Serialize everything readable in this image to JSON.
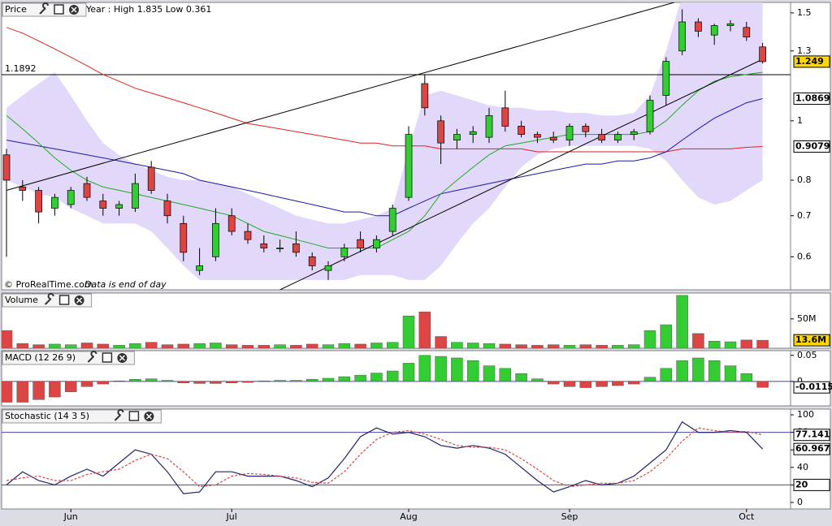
{
  "chart_data": [
    {
      "type": "candlestick",
      "title": "Price",
      "subtitle": "Year : High 1.835 Low 0.361",
      "source": "© ProRealTime.com",
      "note": "Data is end of day",
      "categories": [
        null,
        null,
        null,
        null,
        "Jun",
        null,
        null,
        null,
        null,
        null,
        null,
        null,
        null,
        null,
        "Jul",
        null,
        null,
        null,
        null,
        null,
        null,
        null,
        null,
        null,
        null,
        "Aug",
        null,
        null,
        null,
        null,
        null,
        null,
        null,
        null,
        null,
        "Sep",
        null,
        null,
        null,
        null,
        null,
        null,
        null,
        null,
        null,
        null,
        "Oct",
        null
      ],
      "open": [
        0.88,
        0.78,
        0.77,
        0.72,
        0.73,
        0.79,
        0.74,
        0.72,
        0.72,
        0.84,
        0.74,
        0.68,
        0.57,
        0.6,
        0.7,
        0.66,
        0.63,
        0.62,
        0.63,
        0.6,
        0.57,
        0.6,
        0.64,
        0.62,
        0.66,
        0.75,
        1.15,
        1.0,
        0.93,
        0.95,
        0.94,
        1.05,
        0.98,
        0.95,
        0.94,
        0.93,
        0.98,
        0.95,
        0.93,
        0.95,
        0.96,
        1.1,
        1.3,
        1.45,
        1.38,
        1.43,
        1.42,
        1.32
      ],
      "high": [
        0.9,
        0.8,
        0.78,
        0.76,
        0.78,
        0.81,
        0.76,
        0.74,
        0.82,
        0.86,
        0.76,
        0.7,
        0.62,
        0.72,
        0.72,
        0.68,
        0.65,
        0.64,
        0.66,
        0.61,
        0.59,
        0.63,
        0.66,
        0.65,
        0.73,
        0.98,
        1.19,
        1.02,
        0.97,
        0.98,
        1.05,
        1.12,
        1.0,
        0.96,
        0.96,
        0.99,
        0.99,
        0.97,
        0.96,
        0.97,
        1.1,
        1.27,
        1.52,
        1.47,
        1.44,
        1.46,
        1.45,
        1.34
      ],
      "low": [
        0.6,
        0.74,
        0.68,
        0.7,
        0.72,
        0.74,
        0.7,
        0.7,
        0.71,
        0.76,
        0.68,
        0.59,
        0.56,
        0.59,
        0.65,
        0.63,
        0.61,
        0.61,
        0.6,
        0.57,
        0.55,
        0.59,
        0.61,
        0.61,
        0.65,
        0.74,
        1.02,
        0.85,
        0.9,
        0.92,
        0.92,
        0.96,
        0.94,
        0.92,
        0.92,
        0.91,
        0.94,
        0.92,
        0.92,
        0.93,
        0.95,
        1.06,
        1.28,
        1.37,
        1.33,
        1.4,
        1.35,
        1.24
      ],
      "close": [
        0.8,
        0.77,
        0.71,
        0.75,
        0.77,
        0.75,
        0.72,
        0.73,
        0.79,
        0.77,
        0.7,
        0.61,
        0.58,
        0.68,
        0.66,
        0.64,
        0.62,
        0.62,
        0.61,
        0.58,
        0.58,
        0.62,
        0.62,
        0.64,
        0.72,
        0.95,
        1.05,
        0.92,
        0.95,
        0.96,
        1.02,
        0.98,
        0.95,
        0.94,
        0.93,
        0.98,
        0.96,
        0.93,
        0.95,
        0.96,
        1.08,
        1.25,
        1.45,
        1.4,
        1.43,
        1.44,
        1.37,
        1.249
      ],
      "up_color": "#33cc33",
      "down_color": "#dd4444",
      "log_scale": true,
      "ylim": [
        0.53,
        1.56
      ],
      "yticks": [
        0.6,
        0.7,
        0.8,
        1,
        1.3,
        1.5
      ],
      "hline": 1.1892,
      "band": {
        "color": "#e2d8fa",
        "upper": [
          1.05,
          1.1,
          1.15,
          1.2,
          1.1,
          1.0,
          0.92,
          0.88,
          0.85,
          0.83,
          0.81,
          0.8,
          0.8,
          0.79,
          0.78,
          0.76,
          0.74,
          0.72,
          0.7,
          0.69,
          0.68,
          0.68,
          0.69,
          0.7,
          0.72,
          0.9,
          1.1,
          1.12,
          1.1,
          1.08,
          1.06,
          1.05,
          1.05,
          1.04,
          1.04,
          1.03,
          1.03,
          1.02,
          1.02,
          1.03,
          1.1,
          1.3,
          1.6,
          1.6,
          1.6,
          1.6,
          1.6,
          1.6
        ],
        "lower": [
          0.8,
          0.78,
          0.76,
          0.75,
          0.72,
          0.7,
          0.68,
          0.68,
          0.68,
          0.66,
          0.62,
          0.58,
          0.55,
          0.55,
          0.55,
          0.55,
          0.55,
          0.55,
          0.55,
          0.55,
          0.55,
          0.55,
          0.56,
          0.56,
          0.56,
          0.55,
          0.55,
          0.58,
          0.63,
          0.68,
          0.72,
          0.78,
          0.84,
          0.88,
          0.9,
          0.91,
          0.91,
          0.91,
          0.91,
          0.91,
          0.9,
          0.86,
          0.8,
          0.75,
          0.73,
          0.74,
          0.77,
          0.8
        ]
      },
      "overlays": [
        {
          "color": "#dd2222",
          "values": [
            1.42,
            1.39,
            1.35,
            1.31,
            1.27,
            1.23,
            1.19,
            1.16,
            1.13,
            1.11,
            1.09,
            1.07,
            1.05,
            1.03,
            1.01,
            0.99,
            0.98,
            0.97,
            0.96,
            0.95,
            0.94,
            0.93,
            0.92,
            0.92,
            0.91,
            0.91,
            0.91,
            0.9,
            0.9,
            0.9,
            0.9,
            0.9,
            0.9,
            0.89,
            0.89,
            0.89,
            0.89,
            0.89,
            0.89,
            0.89,
            0.89,
            0.89,
            0.9,
            0.9,
            0.9,
            0.9,
            0.905,
            0.9079
          ]
        },
        {
          "color": "#1a1aa8",
          "values": [
            0.93,
            0.92,
            0.91,
            0.9,
            0.89,
            0.88,
            0.87,
            0.86,
            0.85,
            0.84,
            0.83,
            0.82,
            0.8,
            0.79,
            0.78,
            0.77,
            0.76,
            0.75,
            0.74,
            0.73,
            0.72,
            0.71,
            0.71,
            0.7,
            0.7,
            0.72,
            0.74,
            0.76,
            0.77,
            0.78,
            0.79,
            0.8,
            0.81,
            0.82,
            0.83,
            0.84,
            0.85,
            0.85,
            0.86,
            0.86,
            0.87,
            0.89,
            0.93,
            0.97,
            1.01,
            1.04,
            1.07,
            1.0869
          ]
        },
        {
          "color": "#22aa22",
          "values": [
            1.02,
            0.97,
            0.92,
            0.87,
            0.83,
            0.8,
            0.78,
            0.77,
            0.76,
            0.75,
            0.74,
            0.73,
            0.72,
            0.71,
            0.7,
            0.68,
            0.66,
            0.65,
            0.64,
            0.63,
            0.62,
            0.62,
            0.62,
            0.62,
            0.64,
            0.66,
            0.7,
            0.76,
            0.8,
            0.84,
            0.88,
            0.91,
            0.92,
            0.93,
            0.94,
            0.95,
            0.95,
            0.95,
            0.95,
            0.95,
            0.96,
            1.0,
            1.06,
            1.12,
            1.16,
            1.18,
            1.19,
            1.2
          ]
        }
      ],
      "trendlines": [
        {
          "x": [
            0,
            41.5
          ],
          "values": [
            0.77,
            1.56
          ]
        },
        {
          "x": [
            17,
            47
          ],
          "values": [
            0.53,
            1.26
          ]
        }
      ],
      "markers": [
        {
          "value": 1.249,
          "color": "#ffd700",
          "text_color": "#000000"
        },
        {
          "value": 1.0869,
          "color": "#ffffff",
          "text_color": "#0000aa"
        },
        {
          "value": 0.9079,
          "color": "#ffffff",
          "text_color": "#cc0000"
        }
      ]
    },
    {
      "type": "bar",
      "title": "Volume",
      "values": [
        30,
        8,
        6,
        7,
        6,
        9,
        7,
        5,
        8,
        10,
        6,
        7,
        8,
        9,
        6,
        5,
        5,
        6,
        5,
        7,
        6,
        8,
        7,
        9,
        10,
        55,
        62,
        20,
        10,
        9,
        8,
        7,
        6,
        5,
        6,
        5,
        6,
        5,
        5,
        6,
        30,
        40,
        90,
        25,
        12,
        11,
        14,
        13.6
      ],
      "ylim": [
        0,
        94
      ],
      "yticks": [
        {
          "value": 50,
          "label": "50M"
        }
      ],
      "markers": [
        {
          "value": 13.6,
          "label": "13.6M",
          "color": "#ffd700",
          "text_color": "#000000"
        }
      ]
    },
    {
      "type": "bar",
      "title": "MACD (12 26 9)",
      "up_color": "#33cc33",
      "down_color": "#dd4444",
      "values": [
        -0.04,
        -0.04,
        -0.035,
        -0.03,
        -0.02,
        -0.01,
        -0.005,
        0.001,
        0.004,
        0.005,
        0.002,
        -0.003,
        -0.004,
        -0.004,
        -0.003,
        -0.002,
        0.001,
        0.002,
        0.002,
        0.004,
        0.006,
        0.009,
        0.012,
        0.016,
        0.02,
        0.035,
        0.05,
        0.048,
        0.045,
        0.04,
        0.03,
        0.025,
        0.015,
        0.005,
        -0.005,
        -0.01,
        -0.012,
        -0.01,
        -0.008,
        -0.005,
        0.008,
        0.025,
        0.04,
        0.045,
        0.04,
        0.03,
        0.015,
        -0.0115
      ],
      "ylim": [
        -0.047,
        0.059
      ],
      "yticks": [
        0.05,
        0
      ],
      "markers": [
        {
          "value": -0.0115,
          "color": "#ffffff",
          "text_color": "#cc0000"
        }
      ]
    },
    {
      "type": "line",
      "title": "Stochastic (14 3 5)",
      "series": [
        {
          "color": "#222266",
          "values": [
            20,
            35,
            25,
            20,
            30,
            38,
            30,
            45,
            60,
            55,
            35,
            10,
            12,
            35,
            35,
            30,
            30,
            30,
            25,
            18,
            28,
            50,
            75,
            85,
            78,
            80,
            75,
            65,
            62,
            65,
            62,
            55,
            40,
            25,
            12,
            18,
            25,
            20,
            22,
            30,
            45,
            60,
            92,
            80,
            80,
            82,
            80,
            60.967
          ]
        },
        {
          "color": "#dd4444",
          "dash": true,
          "values": [
            25,
            28,
            30,
            25,
            25,
            32,
            35,
            38,
            48,
            55,
            50,
            35,
            18,
            20,
            30,
            33,
            32,
            30,
            28,
            23,
            22,
            35,
            55,
            72,
            80,
            82,
            78,
            72,
            65,
            63,
            63,
            60,
            50,
            38,
            25,
            18,
            20,
            22,
            22,
            25,
            35,
            50,
            70,
            85,
            82,
            80,
            81,
            77.141
          ]
        }
      ],
      "ylim": [
        -7.4,
        106.5
      ],
      "yticks": [
        0,
        20,
        40,
        60,
        80,
        100
      ],
      "hlines": [
        80,
        20
      ],
      "markers": [
        {
          "value": 77.141,
          "color": "#ffffff",
          "text_color": "#cc0000"
        },
        {
          "value": 60.967,
          "color": "#ffffff",
          "text_color": "#000000"
        },
        {
          "value": 20,
          "color": "#ffffff",
          "text_color": "#0000aa"
        }
      ]
    }
  ]
}
